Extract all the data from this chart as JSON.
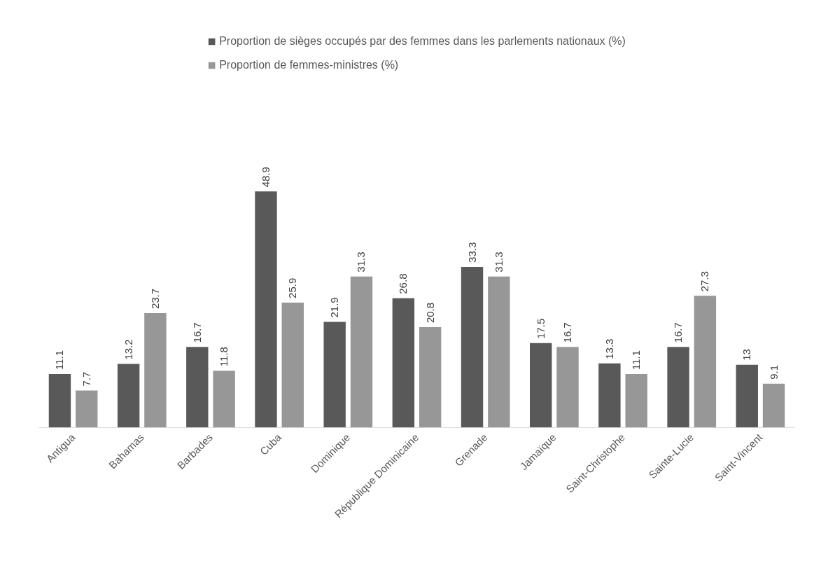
{
  "chart_data": {
    "type": "bar",
    "categories": [
      "Antigua",
      "Bahamas",
      "Barbades",
      "Cuba",
      "Dominique",
      "République Dominicaine",
      "Grenade",
      "Jamaïque",
      "Saint-Christophe",
      "Sainte-Lucie",
      "Saint-Vincent"
    ],
    "series": [
      {
        "name": "Proportion de sièges occupés par des femmes dans les parlements nationaux (%)",
        "color": "#595959",
        "values": [
          11.1,
          13.2,
          16.7,
          48.9,
          21.9,
          26.8,
          33.3,
          17.5,
          13.3,
          16.7,
          13
        ]
      },
      {
        "name": "Proportion de femmes-ministres (%)",
        "color": "#979797",
        "values": [
          7.7,
          23.7,
          11.8,
          25.9,
          31.3,
          20.8,
          31.3,
          16.7,
          11.1,
          27.3,
          9.1
        ]
      }
    ],
    "data_labels": true,
    "legend": "top",
    "grid": false,
    "tick_labels": "x"
  }
}
